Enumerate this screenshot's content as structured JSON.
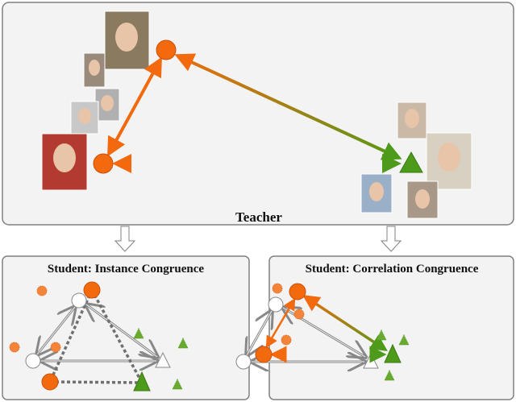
{
  "teacher": {
    "label": "Teacher"
  },
  "students": [
    {
      "title": "Student: Instance Congruence"
    },
    {
      "title": "Student: Correlation Congruence"
    }
  ],
  "colors": {
    "orange": "#f26a0d",
    "green": "#4e9a1a",
    "panel": "#f3f3f3",
    "border": "#808080",
    "hollow": "#888888"
  }
}
